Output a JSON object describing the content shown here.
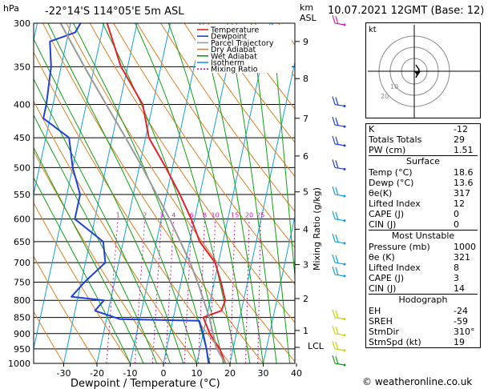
{
  "chart_data": {
    "type": "skew-t log-p sounding diagram",
    "title": "-22°14'S 114°05'E 5m ASL",
    "date_title": "10.07.2021 12GMT (Base: 12)",
    "xlabel": "Dewpoint / Temperature (°C)",
    "ylabel_left": "hPa",
    "ylabel_right_top": "km",
    "ylabel_right_sub": "ASL",
    "mixing_axis_label": "Mixing Ratio (g/kg)",
    "pressure_levels": [
      300,
      350,
      400,
      450,
      500,
      550,
      600,
      650,
      700,
      750,
      800,
      850,
      900,
      950,
      1000
    ],
    "temperature_ticks": [
      -30,
      -20,
      -10,
      0,
      10,
      20,
      30,
      40
    ],
    "xlim": [
      -38,
      40
    ],
    "ylim_hpa": [
      1000,
      300
    ],
    "km_ticks": [
      {
        "km": "1",
        "p": 890
      },
      {
        "km": "2",
        "p": 795
      },
      {
        "km": "3",
        "p": 705
      },
      {
        "km": "4",
        "p": 622
      },
      {
        "km": "5",
        "p": 545
      },
      {
        "km": "6",
        "p": 480
      },
      {
        "km": "7",
        "p": 420
      },
      {
        "km": "8",
        "p": 365
      },
      {
        "km": "9",
        "p": 320
      }
    ],
    "lcl_label": "LCL",
    "lcl_p": 945,
    "mixing_ratio_values": [
      "1",
      "2",
      "3",
      "4",
      "6",
      "8",
      "10",
      "15",
      "20",
      "25"
    ],
    "legend": [
      {
        "name": "Temperature",
        "color": "#e8202a"
      },
      {
        "name": "Dewpoint",
        "color": "#2040d8"
      },
      {
        "name": "Parcel Trajectory",
        "color": "#999999"
      },
      {
        "name": "Dry Adiabat",
        "color": "#e08020"
      },
      {
        "name": "Wet Adiabat",
        "color": "#10a010"
      },
      {
        "name": "Isotherm",
        "color": "#10a0e0"
      },
      {
        "name": "Mixing Ratio",
        "color": "#d020b0"
      }
    ],
    "series": [
      {
        "name": "Temperature",
        "points": [
          [
            1000,
            18.6
          ],
          [
            950,
            16
          ],
          [
            900,
            12
          ],
          [
            850,
            9
          ],
          [
            830,
            14
          ],
          [
            800,
            14.5
          ],
          [
            750,
            12
          ],
          [
            700,
            9
          ],
          [
            650,
            3
          ],
          [
            600,
            -1
          ],
          [
            550,
            -6
          ],
          [
            500,
            -12
          ],
          [
            450,
            -19
          ],
          [
            400,
            -23
          ],
          [
            350,
            -32
          ],
          [
            300,
            -39
          ]
        ]
      },
      {
        "name": "Dewpoint",
        "points": [
          [
            1000,
            13.6
          ],
          [
            950,
            12
          ],
          [
            900,
            10
          ],
          [
            860,
            8
          ],
          [
            855,
            -16
          ],
          [
            830,
            -24
          ],
          [
            800,
            -22
          ],
          [
            790,
            -32
          ],
          [
            750,
            -29
          ],
          [
            700,
            -24
          ],
          [
            650,
            -26
          ],
          [
            600,
            -36
          ],
          [
            550,
            -36
          ],
          [
            500,
            -40
          ],
          [
            450,
            -43
          ],
          [
            420,
            -52
          ],
          [
            400,
            -52
          ],
          [
            350,
            -53
          ],
          [
            320,
            -55
          ],
          [
            310,
            -48
          ],
          [
            300,
            -47
          ]
        ]
      },
      {
        "name": "Parcel Trajectory",
        "points": [
          [
            1000,
            18.6
          ],
          [
            945,
            14.8
          ],
          [
            900,
            13
          ],
          [
            850,
            10.8
          ],
          [
            800,
            8
          ],
          [
            750,
            5
          ],
          [
            700,
            1.5
          ],
          [
            650,
            -2.8
          ],
          [
            600,
            -7.5
          ],
          [
            550,
            -13
          ],
          [
            500,
            -19
          ],
          [
            450,
            -26
          ],
          [
            400,
            -34
          ],
          [
            350,
            -43
          ],
          [
            300,
            -53
          ]
        ]
      }
    ]
  },
  "stats": {
    "rows": [
      {
        "label": "K",
        "value": "-12"
      },
      {
        "label": "Totals Totals",
        "value": "29"
      },
      {
        "label": "PW (cm)",
        "value": "1.51"
      }
    ]
  },
  "surface": {
    "title": "Surface",
    "rows": [
      {
        "label": "Temp (°C)",
        "value": "18.6"
      },
      {
        "label": "Dewp (°C)",
        "value": "13.6"
      },
      {
        "label": "θe(K)",
        "value": "317"
      },
      {
        "label": "Lifted Index",
        "value": "12"
      },
      {
        "label": "CAPE (J)",
        "value": "0"
      },
      {
        "label": "CIN (J)",
        "value": "0"
      }
    ]
  },
  "most_unstable": {
    "title": "Most Unstable",
    "rows": [
      {
        "label": "Pressure (mb)",
        "value": "1000"
      },
      {
        "label": "θe (K)",
        "value": "321"
      },
      {
        "label": "Lifted Index",
        "value": "8"
      },
      {
        "label": "CAPE (J)",
        "value": "3"
      },
      {
        "label": "CIN (J)",
        "value": "14"
      }
    ]
  },
  "hodograph": {
    "title": "Hodograph",
    "panel_label": "kt",
    "ring_labels": [
      "10",
      "20"
    ],
    "rows": [
      {
        "label": "EH",
        "value": "-24"
      },
      {
        "label": "SREH",
        "value": "-59"
      },
      {
        "label": "StmDir",
        "value": "310°"
      },
      {
        "label": "StmSpd (kt)",
        "value": "19"
      }
    ]
  },
  "copyright": "© weatheronline.co.uk"
}
